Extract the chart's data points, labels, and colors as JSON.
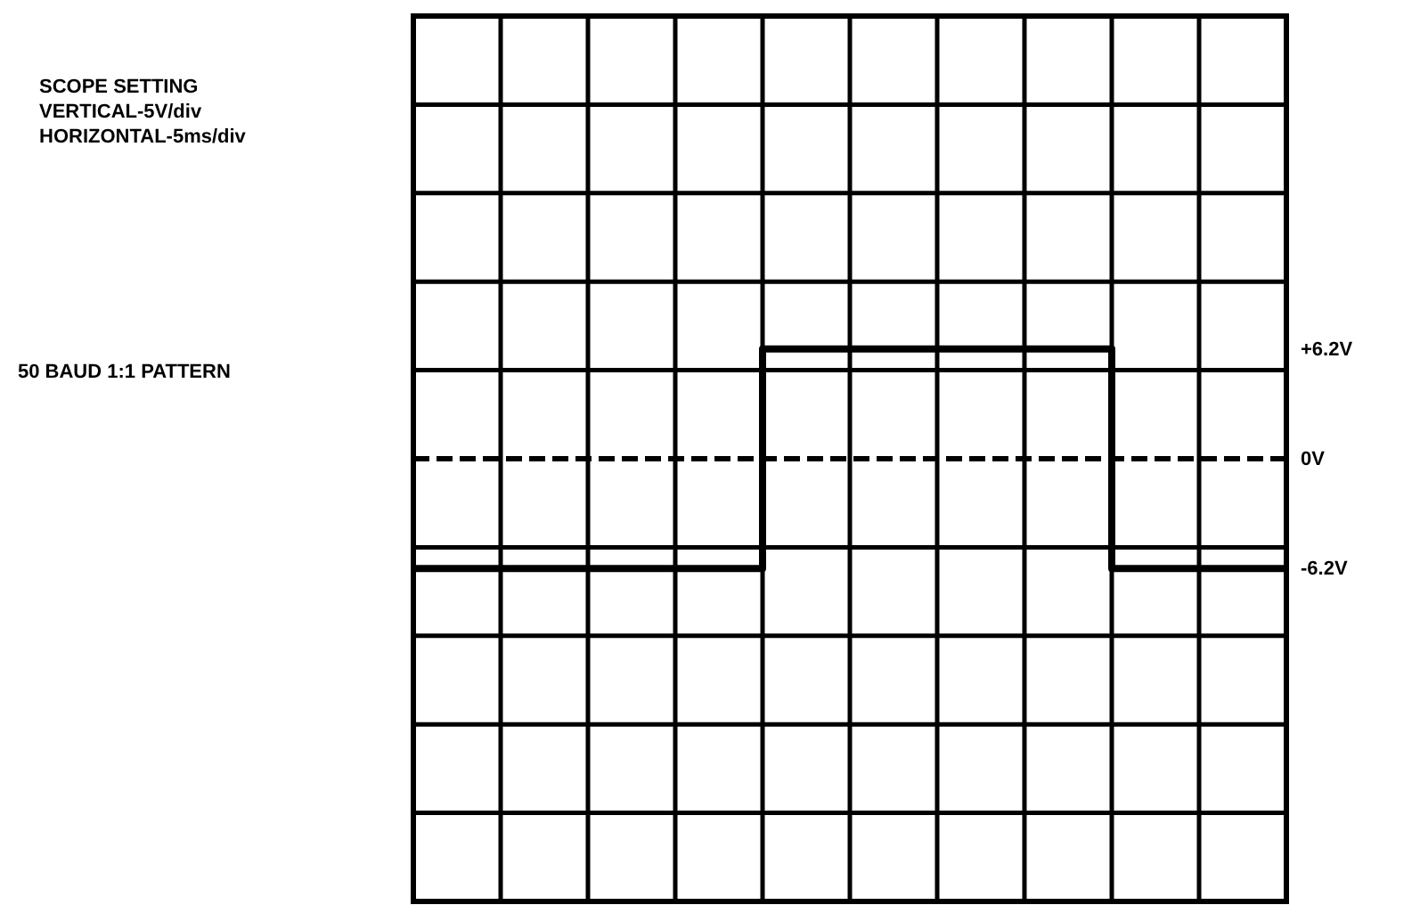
{
  "chart_data": {
    "type": "step",
    "title": "SCOPE SETTING",
    "subtitle": "50 BAUD 1:1 PATTERN",
    "annotations": [
      "VERTICAL-5V/div",
      "HORIZONTAL-5ms/div"
    ],
    "categories": [
      null,
      null,
      null,
      null,
      null,
      null,
      null,
      null,
      null,
      null,
      null
    ],
    "series": [
      {
        "color": "#000000",
        "values": [
          -6.2,
          -6.2,
          -6.2,
          -6.2,
          6.2,
          6.2,
          6.2,
          6.2,
          -6.2,
          -6.2,
          -6.2
        ]
      }
    ],
    "ylim": [
      -25,
      25
    ],
    "yticks": [
      {
        "value": -25,
        "label": null
      },
      {
        "value": -20,
        "label": null
      },
      {
        "value": -15,
        "label": null
      },
      {
        "value": -10,
        "label": null
      },
      {
        "value": -6.2,
        "label": "-6.2V"
      },
      {
        "value": -5,
        "label": null
      },
      {
        "value": 0,
        "label": "0V"
      },
      {
        "value": 5,
        "label": null
      },
      {
        "value": 6.2,
        "label": "+6.2V"
      },
      {
        "value": 10,
        "label": null
      },
      {
        "value": 15,
        "label": null
      },
      {
        "value": 20,
        "label": null
      },
      {
        "value": 25,
        "label": null
      }
    ],
    "grid": true,
    "tick_labels": "y",
    "ref_lines": [
      {
        "axis": "y",
        "value": 0,
        "line_style": "dashed",
        "color": "#000000"
      }
    ]
  }
}
